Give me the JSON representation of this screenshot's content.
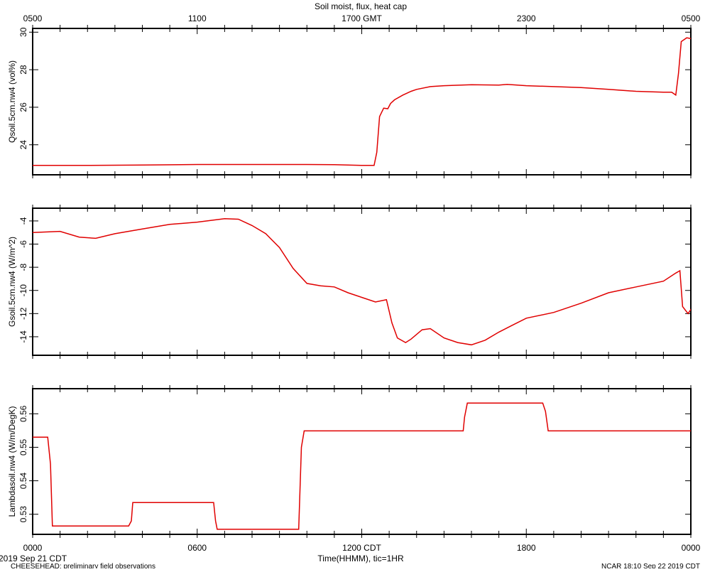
{
  "chart_data": {
    "type": "line",
    "title": "Soil moist, flux, heat cap",
    "top_axis": {
      "ticks": [
        {
          "t": 0,
          "label": "0500"
        },
        {
          "t": 6,
          "label": "1100"
        },
        {
          "t": 12,
          "label": "1700 GMT"
        },
        {
          "t": 18,
          "label": "2300"
        },
        {
          "t": 24,
          "label": "0500"
        }
      ]
    },
    "bottom_axis": {
      "xlabel": "Time(HHMM), tic=1HR",
      "xlim": [
        0,
        24
      ],
      "ticks": [
        {
          "t": 0,
          "label": "0000"
        },
        {
          "t": 6,
          "label": "0600"
        },
        {
          "t": 12,
          "label": "1200 CDT"
        },
        {
          "t": 18,
          "label": "1800"
        },
        {
          "t": 24,
          "label": "0000"
        }
      ],
      "start_label": "2019 Sep 21 CDT"
    },
    "footer_left": "CHEESEHEAD: preliminary field observations",
    "footer_right": "NCAR 18:10 Sep 22 2019 CDT",
    "line_color": "#e00000",
    "panels": [
      {
        "ylabel": "Qsoil.5cm.nw4 (vol%)",
        "ylim": [
          22.4,
          30.2
        ],
        "yticks": [
          24,
          26,
          28,
          30
        ],
        "series": [
          {
            "x": [
              0,
              2,
              4,
              6,
              8,
              10,
              11,
              12,
              12.45,
              12.55,
              12.65,
              12.8,
              12.95,
              13.05,
              13.2,
              13.5,
              13.8,
              14,
              14.5,
              15,
              16,
              17,
              17.3,
              18,
              19,
              20,
              21,
              22,
              23,
              23.3,
              23.45,
              23.55,
              23.65,
              23.85,
              24.2,
              24.5,
              24.8,
              25
            ],
            "y": [
              22.9,
              22.9,
              22.92,
              22.95,
              22.95,
              22.95,
              22.94,
              22.9,
              22.9,
              23.6,
              25.5,
              25.95,
              25.92,
              26.2,
              26.4,
              26.65,
              26.85,
              26.95,
              27.1,
              27.15,
              27.2,
              27.18,
              27.22,
              27.15,
              27.1,
              27.05,
              26.95,
              26.85,
              26.8,
              26.8,
              26.65,
              27.8,
              29.5,
              29.7,
              29.6,
              29.65,
              29.5,
              29.25
            ]
          }
        ]
      },
      {
        "ylabel": "Gsoil.5cm.nw4 (W/m^2)",
        "ylim": [
          -15.6,
          -2.9
        ],
        "yticks": [
          -4,
          -6,
          -8,
          -10,
          -12,
          -14
        ],
        "series": [
          {
            "x": [
              0,
              1,
              1.7,
              2.3,
              3,
              4,
              5,
              6,
              7,
              7.5,
              8,
              8.5,
              9,
              9.5,
              10,
              10.5,
              11,
              11.5,
              12,
              12.5,
              12.9,
              13.1,
              13.3,
              13.6,
              13.8,
              14.2,
              14.5,
              15,
              15.5,
              16,
              16.5,
              17,
              17.5,
              18,
              19,
              20,
              21,
              22,
              23,
              23.45,
              23.6,
              23.7,
              23.9,
              24.3
            ],
            "y": [
              -5.0,
              -4.9,
              -5.4,
              -5.5,
              -5.1,
              -4.7,
              -4.3,
              -4.1,
              -3.8,
              -3.85,
              -4.4,
              -5.1,
              -6.3,
              -8.1,
              -9.4,
              -9.6,
              -9.7,
              -10.2,
              -10.6,
              -11.0,
              -10.8,
              -12.8,
              -14.1,
              -14.5,
              -14.2,
              -13.4,
              -13.3,
              -14.1,
              -14.5,
              -14.7,
              -14.3,
              -13.6,
              -13.0,
              -12.4,
              -11.9,
              -11.1,
              -10.2,
              -9.7,
              -9.2,
              -8.5,
              -8.3,
              -11.4,
              -12.0,
              -10.6
            ]
          }
        ]
      },
      {
        "ylabel": "Lambdasoil.nw4 (W/m/DegK)",
        "ylim": [
          0.524,
          0.5675
        ],
        "yticks": [
          0.53,
          0.54,
          0.55,
          0.56
        ],
        "series": [
          {
            "x": [
              0,
              0.55,
              0.65,
              0.72,
              3.5,
              3.6,
              3.65,
              6.6,
              6.67,
              6.73,
              9.7,
              9.8,
              9.9,
              15.7,
              15.75,
              15.85,
              18.6,
              18.7,
              18.8,
              24
            ],
            "y": [
              0.553,
              0.553,
              0.545,
              0.5265,
              0.5265,
              0.528,
              0.5335,
              0.5335,
              0.528,
              0.5255,
              0.5255,
              0.55,
              0.5549,
              0.5549,
              0.559,
              0.5632,
              0.5632,
              0.5607,
              0.5549,
              0.5549
            ]
          }
        ]
      }
    ]
  }
}
